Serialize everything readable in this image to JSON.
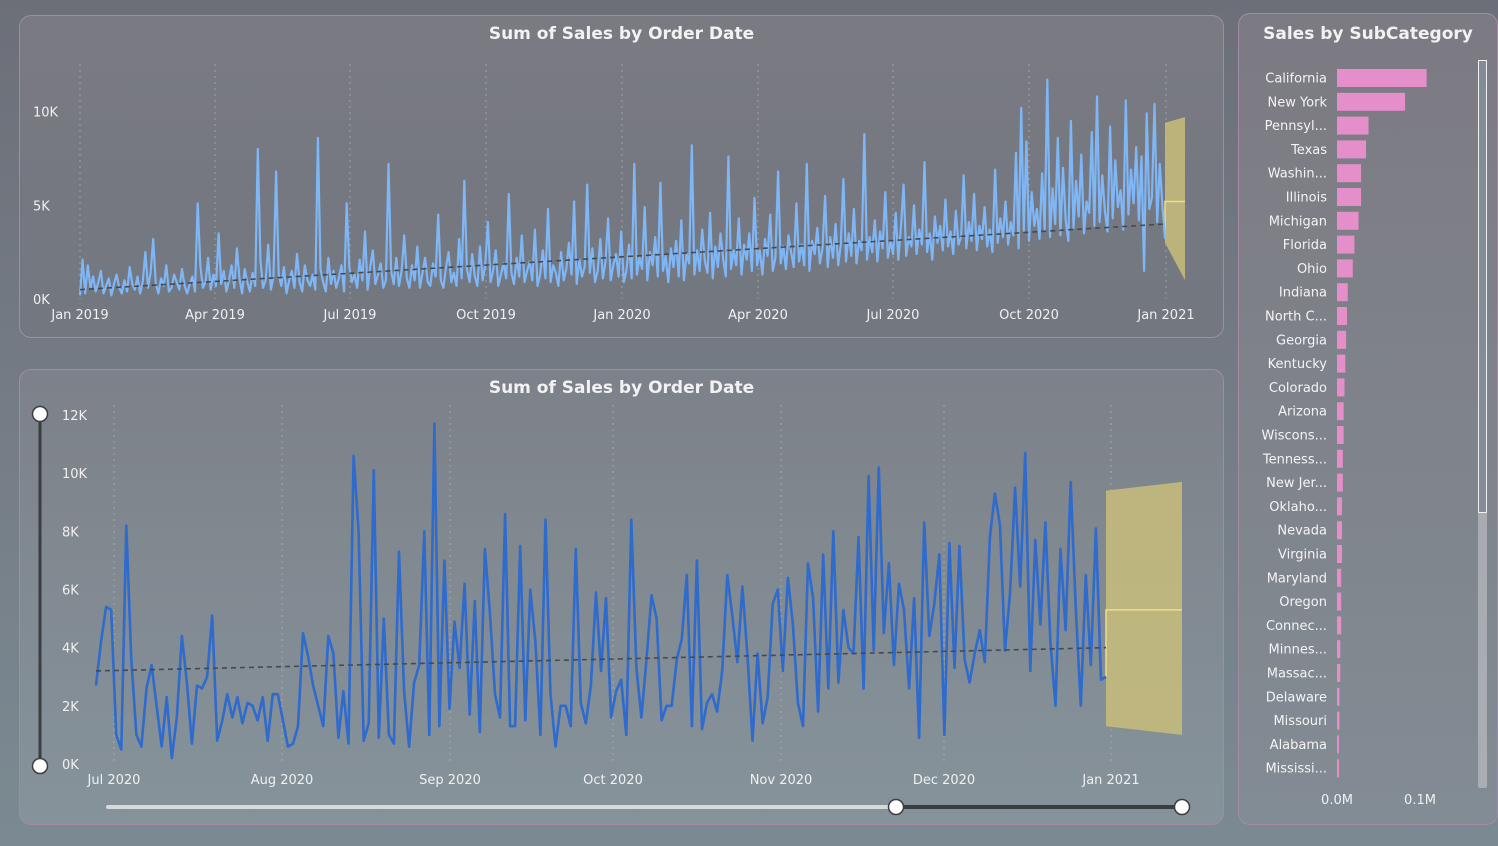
{
  "top_chart": {
    "title": "Sum of Sales by Order Date",
    "x_ticks": [
      "Jan 2019",
      "Apr 2019",
      "Jul 2019",
      "Oct 2019",
      "Jan 2020",
      "Apr 2020",
      "Jul 2020",
      "Oct 2020",
      "Jan 2021"
    ],
    "y_ticks": [
      "0K",
      "5K",
      "10K"
    ]
  },
  "bottom_chart": {
    "title": "Sum of Sales by Order Date",
    "x_ticks": [
      "Jul 2020",
      "Aug 2020",
      "Sep 2020",
      "Oct 2020",
      "Nov 2020",
      "Dec 2020",
      "Jan 2021"
    ],
    "y_ticks": [
      "0K",
      "2K",
      "4K",
      "6K",
      "8K",
      "10K",
      "12K"
    ]
  },
  "right_chart": {
    "title": "Sales by SubCategory",
    "x_ticks": [
      "0.0M",
      "0.1M"
    ]
  },
  "colors": {
    "top_line": "#7fb6f5",
    "bottom_line": "#2f6bcd",
    "forecast_band": "#c8bd7a",
    "forecast_line": "#f0dc8a",
    "trend_line": "#444a52",
    "bar": "#e48fc9"
  },
  "chart_data": [
    {
      "type": "line",
      "title": "Sum of Sales by Order Date",
      "x_range": [
        "2019-01-01",
        "2021-01-01"
      ],
      "ylim": [
        0,
        12000
      ],
      "trend": {
        "start": 500,
        "end": 4000
      },
      "forecast": {
        "x_range": [
          "2021-01-01",
          "2021-01-17"
        ],
        "mean": 5200,
        "lower_start": 3000,
        "lower_end": 1000,
        "upper_start": 9400,
        "upper_end": 9700
      },
      "series": [
        {
          "values": [
            200,
            2100,
            300,
            1800,
            600,
            1200,
            400,
            900,
            1500,
            300,
            700,
            1100,
            200,
            800,
            1300,
            600,
            300,
            1000,
            400,
            1700,
            800,
            500,
            1200,
            300,
            900,
            2500,
            600,
            1400,
            3200,
            800,
            300,
            1100,
            700,
            1800,
            400,
            600,
            1300,
            900,
            500,
            1600,
            700,
            300,
            800,
            1200,
            400,
            5100,
            1800,
            600,
            900,
            2200,
            500,
            1300,
            700,
            3500,
            800,
            1500,
            400,
            1000,
            1800,
            600,
            2700,
            1100,
            300,
            1600,
            900,
            400,
            1400,
            700,
            8000,
            2100,
            600,
            1000,
            2900,
            500,
            1200,
            6800,
            1300,
            700,
            1700,
            300,
            1000,
            1500,
            600,
            2400,
            900,
            400,
            1800,
            1000,
            700,
            1300,
            500,
            8600,
            1600,
            900,
            400,
            2200,
            800,
            1500,
            600,
            1100,
            1800,
            400,
            5100,
            1700,
            900,
            1300,
            600,
            2100,
            1000,
            3600,
            500,
            1700,
            2600,
            800,
            1300,
            1900,
            600,
            1000,
            7200,
            1500,
            800,
            2200,
            700,
            1500,
            3400,
            1100,
            600,
            1800,
            1000,
            2800,
            600,
            1400,
            2200,
            900,
            700,
            1900,
            1200,
            4500,
            1000,
            600,
            1700,
            2500,
            900,
            1400,
            700,
            3200,
            1100,
            6300,
            1600,
            900,
            2400,
            1200,
            700,
            2800,
            1000,
            1800,
            4100,
            900,
            1500,
            2600,
            700,
            1300,
            1900,
            1100,
            5600,
            1400,
            800,
            2200,
            1200,
            3400,
            900,
            1500,
            2000,
            1000,
            3700,
            700,
            1300,
            2600,
            1100,
            4800,
            900,
            1800,
            1400,
            700,
            2500,
            1000,
            1600,
            3000,
            1300,
            5200,
            800,
            2100,
            1200,
            1700,
            6100,
            1400,
            2700,
            900,
            1500,
            3200,
            1100,
            2000,
            4300,
            1000,
            1800,
            2400,
            1200,
            3600,
            900,
            1500,
            2900,
            1100,
            7200,
            1300,
            2200,
            1600,
            4900,
            1000,
            2500,
            1800,
            3300,
            1200,
            6200,
            1500,
            2300,
            900,
            2700,
            1700,
            3100,
            1200,
            4200,
            1000,
            2400,
            1900,
            8200,
            1300,
            2600,
            1500,
            3700,
            2000,
            1400,
            4600,
            1100,
            2800,
            1700,
            3500,
            2100,
            1200,
            7600,
            1600,
            2600,
            1800,
            4300,
            1300,
            2900,
            2100,
            3500,
            1500,
            5400,
            1800,
            2600,
            1300,
            3200,
            2300,
            4500,
            1500,
            2200,
            6800,
            1900,
            2800,
            1600,
            3400,
            2500,
            1700,
            5100,
            2000,
            2900,
            1800,
            7200,
            1500,
            3100,
            2400,
            3800,
            1900,
            2700,
            5500,
            1700,
            3300,
            2200,
            4000,
            1800,
            2900,
            6400,
            2000,
            3500,
            2300,
            4800,
            1900,
            3100,
            2600,
            8800,
            2100,
            3300,
            2500,
            4200,
            2000,
            3600,
            2700,
            5700,
            2200,
            3100,
            2400,
            4600,
            2100,
            3800,
            6100,
            2300,
            3300,
            2800,
            5000,
            2400,
            3700,
            2900,
            7300,
            2500,
            3500,
            2100,
            4400,
            3000,
            3900,
            2600,
            5300,
            2800,
            3600,
            2400,
            4700,
            2900,
            3300,
            6600,
            2700,
            4100,
            3100,
            5600,
            2600,
            3900,
            3200,
            4900,
            2800,
            3700,
            2500,
            6900,
            3000,
            4300,
            3300,
            5200,
            2900,
            4100,
            3400,
            7800,
            2700,
            10200,
            3600,
            8400,
            3100,
            5700,
            3900,
            4800,
            3200,
            6700,
            3700,
            11700,
            3300,
            5900,
            4000,
            8600,
            3400,
            7000,
            4200,
            3100,
            9500,
            3800,
            6300,
            4400,
            7700,
            3500,
            5200,
            4600,
            8900,
            3900,
            10800,
            4100,
            6600,
            4700,
            3600,
            9200,
            4300,
            7400,
            4900,
            5800,
            3700,
            10600,
            4500,
            6900,
            5100,
            8100,
            4200,
            7600,
            1500,
            9900,
            4800,
            5400,
            10400,
            4100,
            7200,
            5000,
            3200
          ]
        }
      ]
    },
    {
      "type": "line",
      "title": "Sum of Sales by Order Date",
      "x_range": [
        "2020-06-28",
        "2021-01-01"
      ],
      "ylim": [
        0,
        12000
      ],
      "trend": {
        "start": 3200,
        "end": 4000
      },
      "forecast": {
        "x_range": [
          "2021-01-01",
          "2021-01-13"
        ],
        "mean": 5300,
        "lower_start": 1300,
        "lower_end": 1000,
        "upper_start": 9400,
        "upper_end": 9700
      },
      "series": [
        {
          "values": [
            2700,
            4200,
            5400,
            5300,
            1000,
            500,
            8200,
            3600,
            1000,
            600,
            2600,
            3400,
            2000,
            600,
            2300,
            200,
            1600,
            4400,
            2800,
            700,
            2700,
            2600,
            3000,
            5100,
            800,
            1500,
            2400,
            1600,
            2300,
            1400,
            2100,
            2000,
            1500,
            2300,
            800,
            2400,
            2400,
            1500,
            600,
            700,
            1300,
            4500,
            3700,
            2700,
            2000,
            1300,
            4400,
            3800,
            900,
            2500,
            700,
            10600,
            8000,
            800,
            1400,
            10100,
            900,
            5000,
            1000,
            700,
            7300,
            2500,
            600,
            2800,
            3400,
            8000,
            1000,
            11700,
            1300,
            7000,
            1900,
            4900,
            3300,
            6200,
            1700,
            5600,
            1100,
            7400,
            5200,
            2400,
            1600,
            8600,
            1300,
            1300,
            7500,
            1500,
            6000,
            4200,
            1000,
            8400,
            2400,
            600,
            2000,
            2000,
            1300,
            7400,
            2100,
            1400,
            2700,
            5900,
            3200,
            5700,
            1600,
            2500,
            2900,
            1000,
            8400,
            3300,
            1600,
            3600,
            5800,
            5000,
            1500,
            2000,
            2000,
            3600,
            4300,
            6500,
            1300,
            7000,
            1200,
            2100,
            2400,
            1800,
            3200,
            6500,
            5100,
            3500,
            6100,
            3700,
            800,
            3800,
            1400,
            2300,
            5500,
            6000,
            3200,
            6400,
            4800,
            2100,
            1300,
            6900,
            5700,
            1800,
            7200,
            2600,
            8000,
            2800,
            5300,
            4000,
            3800,
            7800,
            2600,
            9900,
            3900,
            10200,
            4500,
            6900,
            3400,
            6200,
            5300,
            2600,
            5700,
            900,
            8300,
            4400,
            5500,
            7200,
            1000,
            7600,
            3300,
            7500,
            3600,
            2800,
            3800,
            4600,
            3500,
            7800,
            9300,
            8200,
            3900,
            5900,
            9500,
            6100,
            10700,
            3200,
            7700,
            4800,
            8300,
            4200,
            2000,
            7400,
            4600,
            9700,
            5400,
            2000,
            6500,
            3400,
            8100,
            2900,
            3000
          ]
        }
      ]
    },
    {
      "type": "bar",
      "title": "Sales by SubCategory",
      "orientation": "horizontal",
      "xlim": [
        0,
        0.12
      ],
      "categories": [
        "California",
        "New York",
        "Pennsyl...",
        "Texas",
        "Washin...",
        "Illinois",
        "Michigan",
        "Florida",
        "Ohio",
        "Indiana",
        "North C...",
        "Georgia",
        "Kentucky",
        "Colorado",
        "Arizona",
        "Wiscons...",
        "Tenness...",
        "New Jer...",
        "Oklaho...",
        "Nevada",
        "Virginia",
        "Maryland",
        "Oregon",
        "Connec...",
        "Minnes...",
        "Massac...",
        "Delaware",
        "Missouri",
        "Alabama",
        "Mississi..."
      ],
      "values": [
        0.108,
        0.082,
        0.038,
        0.035,
        0.029,
        0.029,
        0.026,
        0.021,
        0.019,
        0.013,
        0.012,
        0.011,
        0.01,
        0.009,
        0.008,
        0.008,
        0.007,
        0.007,
        0.006,
        0.006,
        0.006,
        0.005,
        0.005,
        0.005,
        0.004,
        0.004,
        0.003,
        0.003,
        0.002,
        0.002
      ]
    }
  ]
}
